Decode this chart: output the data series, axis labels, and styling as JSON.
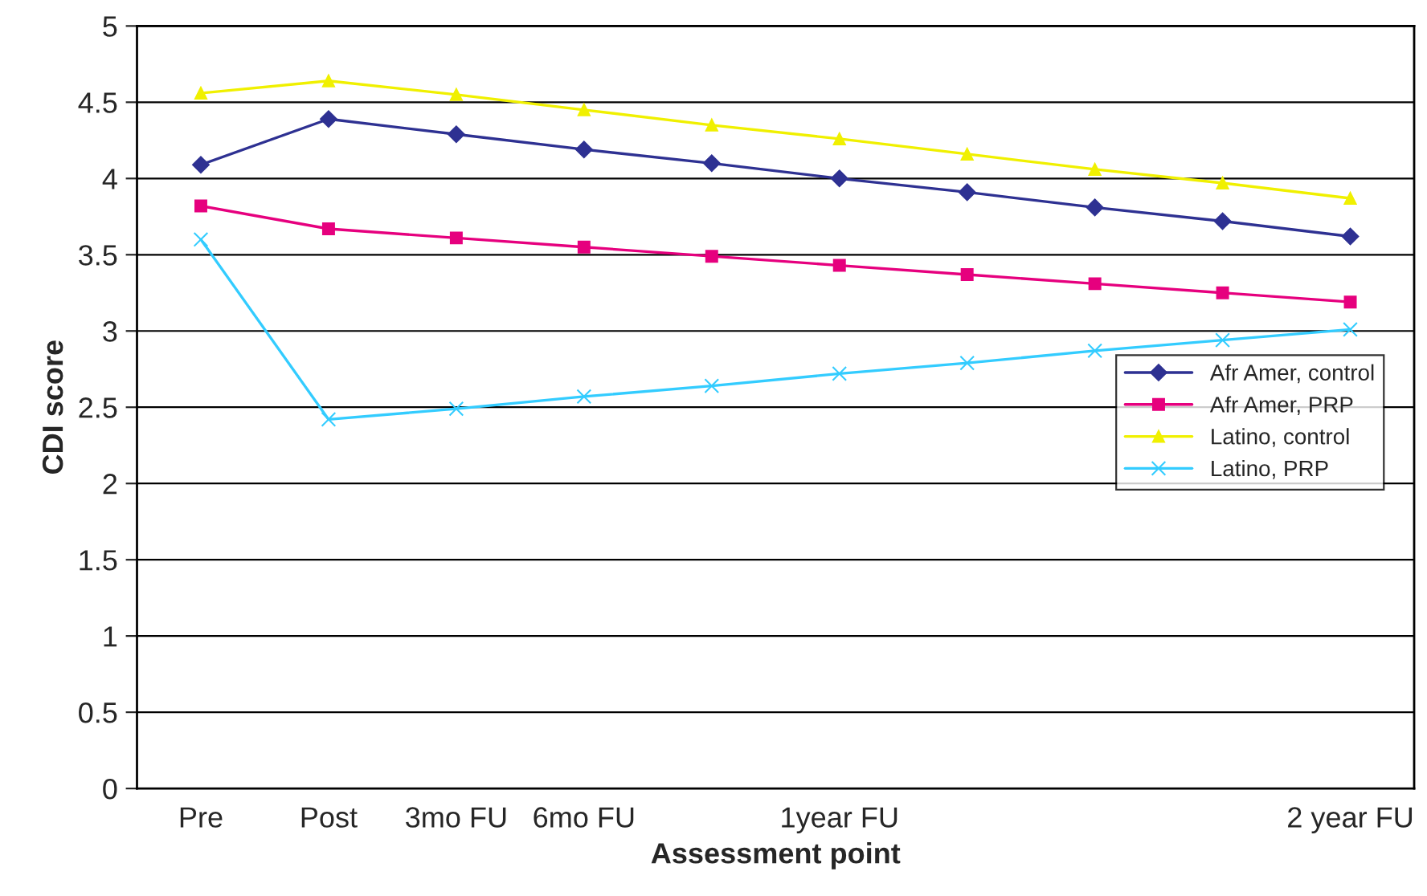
{
  "chart_data": {
    "type": "line",
    "xlabel": "Assessment point",
    "ylabel": "CDI score",
    "categories": [
      "Pre",
      "Post",
      "3mo FU",
      "6mo FU",
      null,
      "1year FU",
      null,
      null,
      null,
      "2 year FU"
    ],
    "series": [
      {
        "name": "Afr Amer, control",
        "color": "#2e3192",
        "marker": "diamond",
        "values": [
          4.09,
          4.39,
          4.29,
          4.19,
          4.1,
          4.0,
          3.91,
          3.81,
          3.72,
          3.62
        ]
      },
      {
        "name": "Afr Amer, PRP",
        "color": "#e6007e",
        "marker": "square",
        "values": [
          3.82,
          3.67,
          3.61,
          3.55,
          3.49,
          3.43,
          3.37,
          3.31,
          3.25,
          3.19
        ]
      },
      {
        "name": "Latino, control",
        "color": "#f0f000",
        "marker": "triangle",
        "values": [
          4.56,
          4.64,
          4.55,
          4.45,
          4.35,
          4.26,
          4.16,
          4.06,
          3.97,
          3.87
        ]
      },
      {
        "name": "Latino, PRP",
        "color": "#33ccff",
        "marker": "cross",
        "values": [
          3.6,
          2.42,
          2.49,
          2.57,
          2.64,
          2.72,
          2.79,
          2.87,
          2.94,
          3.01
        ]
      }
    ],
    "ylim": [
      0,
      5
    ],
    "yticks": [
      0,
      0.5,
      1,
      1.5,
      2,
      2.5,
      3,
      3.5,
      4,
      4.5,
      5
    ],
    "grid": "y",
    "legend": "center right",
    "line_style": "solid"
  }
}
